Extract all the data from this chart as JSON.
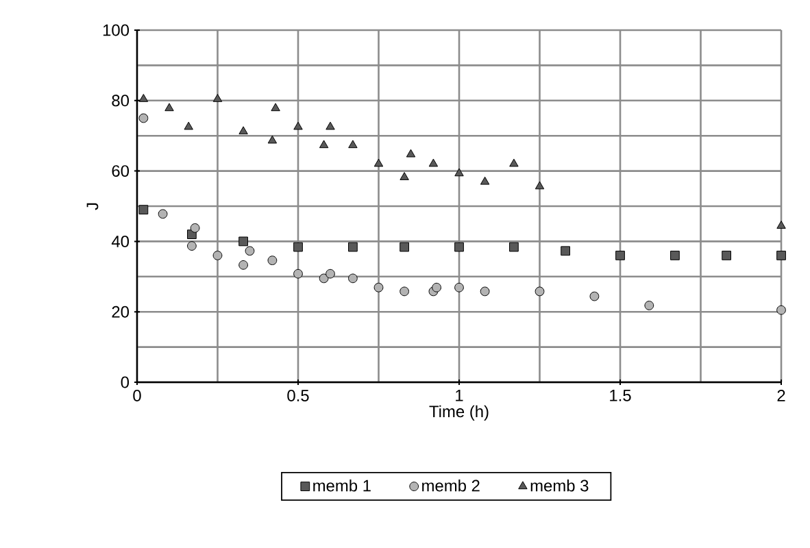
{
  "chart_data": {
    "type": "scatter",
    "xlabel": "Time (h)",
    "ylabel": "J",
    "xlim": [
      0,
      2
    ],
    "ylim": [
      0,
      100
    ],
    "xticks": [
      0,
      0.5,
      1,
      1.5,
      2
    ],
    "yticks": [
      0,
      20,
      40,
      60,
      80,
      100
    ],
    "grid": true,
    "legend": "bottom",
    "series": [
      {
        "name": "memb 1",
        "color": "#595959",
        "marker": "square",
        "x": [
          0.02,
          0.17,
          0.33,
          0.5,
          0.67,
          0.83,
          1.0,
          1.17,
          1.33,
          1.5,
          1.67,
          1.83,
          2.0
        ],
        "values": [
          49,
          42,
          40,
          38.4,
          38.4,
          38.4,
          38.4,
          38.4,
          37.3,
          36,
          36,
          36,
          36
        ]
      },
      {
        "name": "memb 2",
        "color": "#b3b3b3",
        "marker": "circle",
        "x": [
          0.02,
          0.08,
          0.17,
          0.18,
          0.25,
          0.33,
          0.35,
          0.42,
          0.5,
          0.58,
          0.6,
          0.67,
          0.75,
          0.83,
          0.92,
          0.93,
          1.0,
          1.08,
          1.25,
          1.42,
          1.59,
          2.0
        ],
        "values": [
          75,
          47.8,
          38.7,
          43.8,
          36,
          33.3,
          37.3,
          34.6,
          30.8,
          29.5,
          30.8,
          29.5,
          26.9,
          25.8,
          25.8,
          26.9,
          26.9,
          25.8,
          25.8,
          24.4,
          21.8,
          20.5
        ]
      },
      {
        "name": "memb 3",
        "color": "#595959",
        "marker": "triangle",
        "x": [
          0.02,
          0.1,
          0.16,
          0.25,
          0.33,
          0.42,
          0.43,
          0.5,
          0.58,
          0.6,
          0.67,
          0.75,
          0.83,
          0.85,
          0.92,
          1.0,
          1.08,
          1.17,
          1.25,
          2.0
        ],
        "values": [
          80.4,
          77.8,
          72.5,
          80.4,
          71.2,
          68.6,
          77.8,
          72.5,
          67.3,
          72.5,
          67.3,
          62,
          58.2,
          64.7,
          62,
          59.3,
          56.9,
          62,
          55.6,
          44.4
        ]
      }
    ]
  }
}
